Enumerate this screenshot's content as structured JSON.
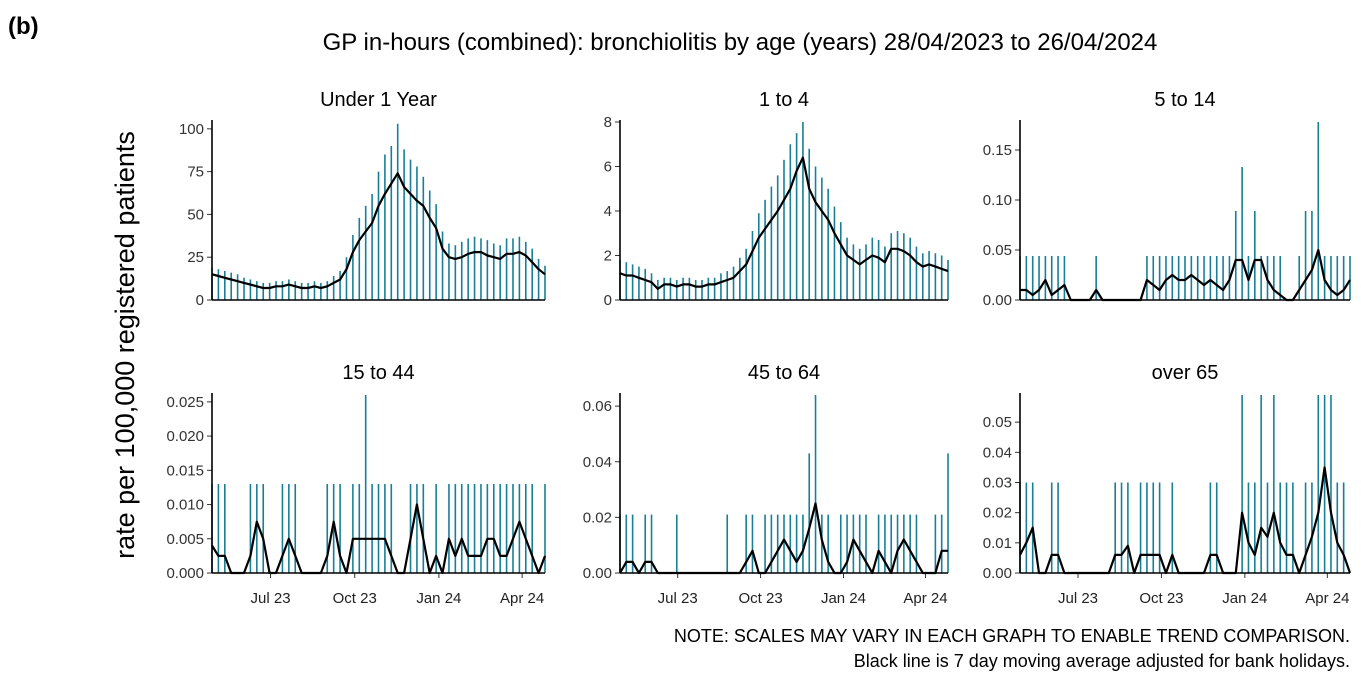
{
  "panel_label": "(b)",
  "title": "GP in-hours (combined): bronchiolitis by age (years) 28/04/2023 to 26/04/2024",
  "y_label": "rate per 100,000 registered patients",
  "notes": [
    "NOTE: SCALES MAY VARY IN EACH GRAPH TO ENABLE TREND COMPARISON.",
    "Black line is 7 day moving average adjusted for bank holidays."
  ],
  "chart_data": [
    {
      "type": "line",
      "title": "Under 1 Year",
      "x": [
        0,
        7,
        14,
        21,
        28,
        35,
        42,
        49,
        56,
        63,
        70,
        77,
        84,
        91,
        98,
        105,
        112,
        119,
        126,
        133,
        140,
        147,
        154,
        161,
        168,
        175,
        182,
        189,
        196,
        203,
        210,
        217,
        224,
        231,
        238,
        245,
        252,
        259,
        266,
        273,
        280,
        287,
        294,
        301,
        308,
        315,
        322,
        329,
        336,
        343,
        350,
        357,
        364
      ],
      "series": [
        {
          "color": "#1a7f96",
          "values": [
            19,
            18,
            17,
            16,
            15,
            13,
            12,
            11,
            10,
            10,
            11,
            11,
            12,
            11,
            10,
            10,
            11,
            10,
            11,
            14,
            17,
            25,
            38,
            48,
            55,
            62,
            75,
            85,
            90,
            103,
            88,
            82,
            78,
            72,
            64,
            56,
            40,
            33,
            32,
            34,
            36,
            37,
            36,
            35,
            33,
            32,
            36,
            36,
            37,
            34,
            30,
            24,
            20
          ]
        },
        {
          "color": "#000000",
          "values": [
            15,
            14,
            13,
            12,
            11,
            10,
            9,
            8,
            7,
            7,
            8,
            8,
            9,
            8,
            7,
            7,
            8,
            7,
            8,
            10,
            12,
            18,
            28,
            35,
            40,
            45,
            55,
            62,
            68,
            74,
            66,
            62,
            58,
            55,
            48,
            42,
            30,
            25,
            24,
            25,
            27,
            28,
            28,
            26,
            25,
            24,
            27,
            27,
            28,
            26,
            22,
            18,
            15
          ]
        }
      ],
      "xlim": [
        0,
        364
      ],
      "ylim": [
        0,
        104
      ],
      "yticks": [
        0,
        25,
        50,
        75,
        100
      ]
    },
    {
      "type": "line",
      "title": "1 to 4",
      "x": [
        0,
        7,
        14,
        21,
        28,
        35,
        42,
        49,
        56,
        63,
        70,
        77,
        84,
        91,
        98,
        105,
        112,
        119,
        126,
        133,
        140,
        147,
        154,
        161,
        168,
        175,
        182,
        189,
        196,
        203,
        210,
        217,
        224,
        231,
        238,
        245,
        252,
        259,
        266,
        273,
        280,
        287,
        294,
        301,
        308,
        315,
        322,
        329,
        336,
        343,
        350,
        357,
        364
      ],
      "series": [
        {
          "color": "#1a7f96",
          "values": [
            1.8,
            1.7,
            1.6,
            1.5,
            1.4,
            1.2,
            0.9,
            1.0,
            1.0,
            0.9,
            1.0,
            1.0,
            0.9,
            0.9,
            1.0,
            1.0,
            1.2,
            1.3,
            1.5,
            1.9,
            2.3,
            3.1,
            3.9,
            4.5,
            5.1,
            5.6,
            6.3,
            7.0,
            7.5,
            8.0,
            6.8,
            6.0,
            5.5,
            5.0,
            4.2,
            3.5,
            2.8,
            2.5,
            2.3,
            2.5,
            2.8,
            2.7,
            2.4,
            3.0,
            3.1,
            3.0,
            2.8,
            2.4,
            2.1,
            2.2,
            2.1,
            2.0,
            1.8
          ]
        },
        {
          "color": "#000000",
          "values": [
            1.2,
            1.1,
            1.1,
            1.0,
            0.9,
            0.8,
            0.5,
            0.7,
            0.7,
            0.6,
            0.7,
            0.7,
            0.6,
            0.6,
            0.7,
            0.7,
            0.8,
            0.9,
            1.0,
            1.3,
            1.6,
            2.2,
            2.8,
            3.2,
            3.6,
            4.0,
            4.5,
            5.0,
            5.8,
            6.4,
            5.0,
            4.4,
            4.0,
            3.6,
            3.0,
            2.5,
            2.0,
            1.8,
            1.6,
            1.8,
            2.0,
            1.9,
            1.7,
            2.3,
            2.3,
            2.2,
            2.0,
            1.7,
            1.5,
            1.6,
            1.5,
            1.4,
            1.3
          ]
        }
      ],
      "xlim": [
        0,
        364
      ],
      "ylim": [
        0,
        8
      ],
      "yticks": [
        0,
        2,
        4,
        6,
        8
      ]
    },
    {
      "type": "line",
      "title": "5 to 14",
      "x": [
        0,
        7,
        14,
        21,
        28,
        35,
        42,
        49,
        56,
        63,
        70,
        77,
        84,
        91,
        98,
        105,
        112,
        119,
        126,
        133,
        140,
        147,
        154,
        161,
        168,
        175,
        182,
        189,
        196,
        203,
        210,
        217,
        224,
        231,
        238,
        245,
        252,
        259,
        266,
        273,
        280,
        287,
        294,
        301,
        308,
        315,
        322,
        329,
        336,
        343,
        350,
        357,
        364
      ],
      "series": [
        {
          "color": "#1a7f96",
          "values": [
            0.044,
            0.044,
            0.044,
            0.044,
            0.044,
            0.044,
            0.044,
            0.044,
            0,
            0,
            0,
            0,
            0.044,
            0,
            0,
            0,
            0,
            0,
            0,
            0,
            0.044,
            0.044,
            0.044,
            0.044,
            0.044,
            0.044,
            0.044,
            0.044,
            0.044,
            0.044,
            0.044,
            0.044,
            0.044,
            0.044,
            0.089,
            0.133,
            0.044,
            0.089,
            0.044,
            0.044,
            0.044,
            0.044,
            0,
            0,
            0.044,
            0.089,
            0.089,
            0.178,
            0.044,
            0.044,
            0.044,
            0.044,
            0.044
          ]
        },
        {
          "color": "#000000",
          "values": [
            0.01,
            0.01,
            0.005,
            0.01,
            0.02,
            0.005,
            0.01,
            0.015,
            0,
            0,
            0,
            0,
            0.01,
            0,
            0,
            0,
            0,
            0,
            0,
            0,
            0.02,
            0.015,
            0.01,
            0.02,
            0.025,
            0.02,
            0.02,
            0.025,
            0.02,
            0.015,
            0.02,
            0.015,
            0.01,
            0.02,
            0.04,
            0.04,
            0.02,
            0.04,
            0.04,
            0.02,
            0.01,
            0.005,
            0,
            0,
            0.01,
            0.02,
            0.03,
            0.05,
            0.02,
            0.01,
            0.005,
            0.01,
            0.02
          ]
        }
      ],
      "xlim": [
        0,
        364
      ],
      "ylim": [
        0,
        0.178
      ],
      "yticks": [
        {
          "value": 0,
          "label": "0.00"
        },
        0.05,
        {
          "value": 0.1,
          "label": "0.10"
        },
        0.15
      ]
    },
    {
      "type": "line",
      "title": "15 to 44",
      "x": [
        0,
        7,
        14,
        21,
        28,
        35,
        42,
        49,
        56,
        63,
        70,
        77,
        84,
        91,
        98,
        105,
        112,
        119,
        126,
        133,
        140,
        147,
        154,
        161,
        168,
        175,
        182,
        189,
        196,
        203,
        210,
        217,
        224,
        231,
        238,
        245,
        252,
        259,
        266,
        273,
        280,
        287,
        294,
        301,
        308,
        315,
        322,
        329,
        336,
        343,
        350,
        357,
        364
      ],
      "series": [
        {
          "color": "#1a7f96",
          "values": [
            0.013,
            0.013,
            0.013,
            0,
            0,
            0,
            0.013,
            0.013,
            0.013,
            0,
            0,
            0.013,
            0.013,
            0.013,
            0,
            0,
            0,
            0,
            0.013,
            0.013,
            0.013,
            0,
            0.013,
            0.013,
            0.026,
            0.013,
            0.013,
            0.013,
            0.013,
            0,
            0,
            0.013,
            0.013,
            0.013,
            0,
            0.013,
            0,
            0.013,
            0.013,
            0.013,
            0.013,
            0.013,
            0.013,
            0.013,
            0.013,
            0.013,
            0.013,
            0.013,
            0.013,
            0.013,
            0.013,
            0,
            0.013
          ]
        },
        {
          "color": "#000000",
          "values": [
            0.004,
            0.0025,
            0.0025,
            0,
            0,
            0,
            0.0025,
            0.0075,
            0.005,
            0,
            0,
            0.0025,
            0.005,
            0.0025,
            0,
            0,
            0,
            0,
            0.0025,
            0.0075,
            0.0025,
            0,
            0.005,
            0.005,
            0.005,
            0.005,
            0.005,
            0.005,
            0.0025,
            0,
            0,
            0.005,
            0.01,
            0.005,
            0,
            0.0025,
            0,
            0.005,
            0.0025,
            0.005,
            0.0025,
            0.0025,
            0.0025,
            0.005,
            0.005,
            0.0025,
            0.0025,
            0.005,
            0.0075,
            0.005,
            0.0025,
            0,
            0.0025
          ]
        }
      ],
      "xlim": [
        0,
        364
      ],
      "ylim": [
        0,
        0.026
      ],
      "yticks": [
        {
          "value": 0,
          "label": "0.000"
        },
        0.005,
        {
          "value": 0.01,
          "label": "0.010"
        },
        0.015,
        {
          "value": 0.02,
          "label": "0.020"
        },
        0.025
      ],
      "xticks": [
        {
          "value": 64,
          "label": "Jul 23"
        },
        {
          "value": 156,
          "label": "Oct 23"
        },
        {
          "value": 248,
          "label": "Jan 24"
        },
        {
          "value": 339,
          "label": "Apr 24"
        }
      ]
    },
    {
      "type": "line",
      "title": "45 to 64",
      "x": [
        0,
        7,
        14,
        21,
        28,
        35,
        42,
        49,
        56,
        63,
        70,
        77,
        84,
        91,
        98,
        105,
        112,
        119,
        126,
        133,
        140,
        147,
        154,
        161,
        168,
        175,
        182,
        189,
        196,
        203,
        210,
        217,
        224,
        231,
        238,
        245,
        252,
        259,
        266,
        273,
        280,
        287,
        294,
        301,
        308,
        315,
        322,
        329,
        336,
        343,
        350,
        357,
        364
      ],
      "series": [
        {
          "color": "#1a7f96",
          "values": [
            0.021,
            0.021,
            0.021,
            0,
            0.021,
            0.021,
            0,
            0,
            0,
            0.021,
            0,
            0,
            0,
            0,
            0,
            0,
            0,
            0.021,
            0,
            0,
            0.021,
            0.021,
            0,
            0.021,
            0.021,
            0.021,
            0.021,
            0.021,
            0.021,
            0.021,
            0.043,
            0.064,
            0.021,
            0.021,
            0,
            0.021,
            0.021,
            0.021,
            0.021,
            0.021,
            0,
            0.021,
            0.021,
            0.021,
            0.021,
            0.021,
            0.021,
            0.021,
            0,
            0,
            0.021,
            0.021,
            0.043
          ]
        },
        {
          "color": "#000000",
          "values": [
            0,
            0.004,
            0.004,
            0,
            0.004,
            0.004,
            0,
            0,
            0,
            0,
            0,
            0,
            0,
            0,
            0,
            0,
            0,
            0,
            0,
            0,
            0.004,
            0.008,
            0,
            0,
            0.004,
            0.008,
            0.012,
            0.008,
            0.004,
            0.008,
            0.016,
            0.025,
            0.012,
            0.004,
            0,
            0,
            0.004,
            0.012,
            0.008,
            0.004,
            0,
            0.008,
            0.004,
            0,
            0.008,
            0.012,
            0.008,
            0.004,
            0,
            0,
            0,
            0.008,
            0.008
          ]
        }
      ],
      "xlim": [
        0,
        364
      ],
      "ylim": [
        0,
        0.064
      ],
      "yticks": [
        {
          "value": 0,
          "label": "0.00"
        },
        0.02,
        0.04,
        0.06
      ],
      "xticks": [
        {
          "value": 64,
          "label": "Jul 23"
        },
        {
          "value": 156,
          "label": "Oct 23"
        },
        {
          "value": 248,
          "label": "Jan 24"
        },
        {
          "value": 339,
          "label": "Apr 24"
        }
      ]
    },
    {
      "type": "line",
      "title": "over 65",
      "x": [
        0,
        7,
        14,
        21,
        28,
        35,
        42,
        49,
        56,
        63,
        70,
        77,
        84,
        91,
        98,
        105,
        112,
        119,
        126,
        133,
        140,
        147,
        154,
        161,
        168,
        175,
        182,
        189,
        196,
        203,
        210,
        217,
        224,
        231,
        238,
        245,
        252,
        259,
        266,
        273,
        280,
        287,
        294,
        301,
        308,
        315,
        322,
        329,
        336,
        343,
        350,
        357,
        364
      ],
      "series": [
        {
          "color": "#1a7f96",
          "values": [
            0.03,
            0.03,
            0.03,
            0,
            0,
            0.03,
            0.03,
            0,
            0,
            0,
            0,
            0,
            0,
            0,
            0,
            0.03,
            0.03,
            0.03,
            0,
            0.03,
            0.03,
            0.03,
            0.03,
            0,
            0.03,
            0,
            0,
            0,
            0,
            0,
            0.03,
            0.03,
            0,
            0,
            0,
            0.059,
            0.03,
            0.03,
            0.059,
            0.03,
            0.059,
            0.03,
            0.03,
            0.03,
            0,
            0.03,
            0.03,
            0.059,
            0.059,
            0.059,
            0.03,
            0.03,
            0
          ]
        },
        {
          "color": "#000000",
          "values": [
            0.006,
            0.01,
            0.015,
            0,
            0,
            0.006,
            0.006,
            0,
            0,
            0,
            0,
            0,
            0,
            0,
            0,
            0.006,
            0.006,
            0.009,
            0,
            0.006,
            0.006,
            0.006,
            0.006,
            0,
            0.006,
            0,
            0,
            0,
            0,
            0,
            0.006,
            0.006,
            0,
            0,
            0,
            0.02,
            0.01,
            0.006,
            0.015,
            0.012,
            0.02,
            0.01,
            0.006,
            0.006,
            0,
            0.006,
            0.012,
            0.02,
            0.035,
            0.02,
            0.01,
            0.006,
            0
          ]
        }
      ],
      "xlim": [
        0,
        364
      ],
      "ylim": [
        0,
        0.059
      ],
      "yticks": [
        {
          "value": 0,
          "label": "0.00"
        },
        0.01,
        0.02,
        0.03,
        0.04,
        0.05
      ],
      "xticks": [
        {
          "value": 64,
          "label": "Jul 23"
        },
        {
          "value": 156,
          "label": "Oct 23"
        },
        {
          "value": 248,
          "label": "Jan 24"
        },
        {
          "value": 339,
          "label": "Apr 24"
        }
      ]
    }
  ]
}
